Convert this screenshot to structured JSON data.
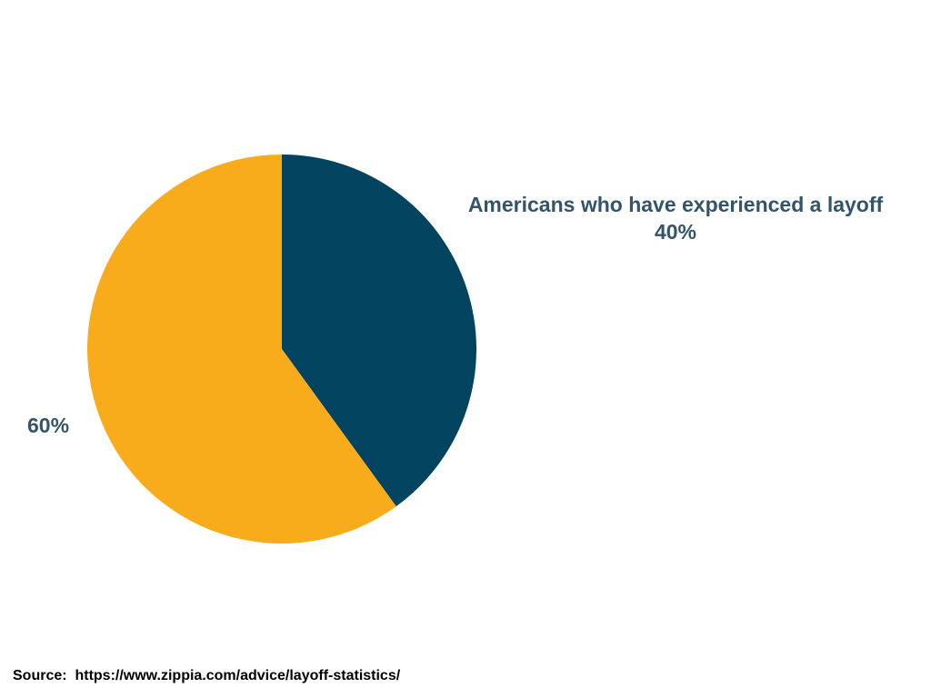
{
  "chart_data": {
    "type": "pie",
    "title": "",
    "slices": [
      {
        "label": "Americans who have experienced a layoff",
        "value": 40,
        "display": "40%",
        "color": "#02445f"
      },
      {
        "label": "",
        "value": 60,
        "display": "60%",
        "color": "#f9ac1b"
      }
    ]
  },
  "labels": {
    "slice_a_name": "Americans who have experienced a layoff",
    "slice_a_value": "40%",
    "slice_b_value": "60%"
  },
  "source": {
    "prefix": "Source:",
    "url": "https://www.zippia.com/advice/layoff-statistics/"
  }
}
